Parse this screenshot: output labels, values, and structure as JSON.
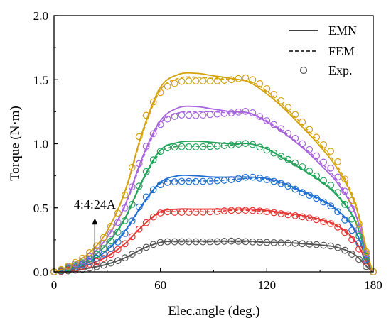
{
  "chart_data": {
    "type": "line",
    "title": "",
    "xlabel": "Elec.angle (deg.)",
    "ylabel": "Torque (N·m)",
    "xlim": [
      0,
      180
    ],
    "ylim": [
      0,
      2.0
    ],
    "xticks": [
      0,
      60,
      120,
      180
    ],
    "yticks": [
      0.0,
      0.5,
      1.0,
      1.5,
      2.0
    ],
    "xtick_labels": [
      "0",
      "60",
      "120",
      "180"
    ],
    "ytick_labels": [
      "0.0",
      "0.5",
      "1.0",
      "1.5",
      "2.0"
    ],
    "grid": false,
    "legend_position": "top-right",
    "legend": [
      {
        "label": "EMN",
        "style": "solid"
      },
      {
        "label": "FEM",
        "style": "dashed"
      },
      {
        "label": "Exp.",
        "style": "circle"
      }
    ],
    "annotation": {
      "text": "4:4:24A",
      "x": 23,
      "y_from": 0.0,
      "y_to": 0.42
    },
    "x": [
      0,
      10,
      20,
      30,
      40,
      50,
      60,
      70,
      80,
      90,
      100,
      110,
      120,
      130,
      140,
      150,
      160,
      170,
      180
    ],
    "series": [
      {
        "color": "#555555",
        "emn": [
          0,
          0.01,
          0.03,
          0.06,
          0.11,
          0.18,
          0.23,
          0.24,
          0.24,
          0.24,
          0.24,
          0.24,
          0.23,
          0.23,
          0.22,
          0.21,
          0.19,
          0.13,
          0
        ],
        "fem": [
          0,
          0.01,
          0.03,
          0.06,
          0.11,
          0.18,
          0.23,
          0.235,
          0.235,
          0.235,
          0.235,
          0.235,
          0.23,
          0.23,
          0.22,
          0.21,
          0.19,
          0.13,
          0
        ],
        "exp": [
          0,
          0.01,
          0.03,
          0.06,
          0.11,
          0.18,
          0.23,
          0.235,
          0.235,
          0.235,
          0.24,
          0.235,
          0.23,
          0.225,
          0.22,
          0.21,
          0.19,
          0.12,
          0
        ]
      },
      {
        "color": "#e83535",
        "emn": [
          0,
          0.02,
          0.06,
          0.12,
          0.22,
          0.36,
          0.47,
          0.49,
          0.49,
          0.49,
          0.49,
          0.49,
          0.48,
          0.46,
          0.44,
          0.41,
          0.36,
          0.24,
          0
        ],
        "fem": [
          0,
          0.02,
          0.06,
          0.12,
          0.22,
          0.36,
          0.46,
          0.47,
          0.47,
          0.47,
          0.48,
          0.48,
          0.47,
          0.45,
          0.43,
          0.4,
          0.35,
          0.23,
          0
        ],
        "exp": [
          0,
          0.02,
          0.06,
          0.12,
          0.22,
          0.36,
          0.46,
          0.465,
          0.465,
          0.47,
          0.48,
          0.48,
          0.47,
          0.45,
          0.43,
          0.4,
          0.35,
          0.22,
          0
        ]
      },
      {
        "color": "#1f6fd1",
        "emn": [
          0,
          0.03,
          0.08,
          0.17,
          0.32,
          0.53,
          0.7,
          0.75,
          0.75,
          0.74,
          0.74,
          0.74,
          0.73,
          0.69,
          0.63,
          0.57,
          0.48,
          0.32,
          0
        ],
        "fem": [
          0,
          0.03,
          0.08,
          0.17,
          0.31,
          0.52,
          0.69,
          0.71,
          0.71,
          0.71,
          0.72,
          0.73,
          0.72,
          0.68,
          0.62,
          0.56,
          0.47,
          0.31,
          0
        ],
        "exp": [
          0,
          0.03,
          0.08,
          0.16,
          0.3,
          0.55,
          0.68,
          0.705,
          0.705,
          0.71,
          0.72,
          0.74,
          0.72,
          0.68,
          0.62,
          0.56,
          0.47,
          0.28,
          0
        ]
      },
      {
        "color": "#22a35a",
        "emn": [
          0,
          0.04,
          0.1,
          0.22,
          0.42,
          0.72,
          0.95,
          1.01,
          1.02,
          1.01,
          1.0,
          1.0,
          0.96,
          0.88,
          0.8,
          0.71,
          0.59,
          0.39,
          0
        ],
        "fem": [
          0,
          0.04,
          0.1,
          0.22,
          0.41,
          0.71,
          0.93,
          0.98,
          0.98,
          0.98,
          0.99,
          1.0,
          0.96,
          0.89,
          0.81,
          0.72,
          0.6,
          0.4,
          0
        ],
        "exp": [
          0,
          0.04,
          0.1,
          0.21,
          0.4,
          0.73,
          0.94,
          0.975,
          0.975,
          0.98,
          0.99,
          1.0,
          0.95,
          0.89,
          0.82,
          0.73,
          0.62,
          0.35,
          0
        ]
      },
      {
        "color": "#a864dd",
        "emn": [
          0,
          0.05,
          0.12,
          0.27,
          0.52,
          0.9,
          1.18,
          1.28,
          1.29,
          1.27,
          1.25,
          1.24,
          1.17,
          1.08,
          0.97,
          0.84,
          0.69,
          0.45,
          0
        ],
        "fem": [
          0,
          0.05,
          0.12,
          0.27,
          0.51,
          0.88,
          1.16,
          1.24,
          1.25,
          1.25,
          1.24,
          1.24,
          1.18,
          1.09,
          0.98,
          0.86,
          0.71,
          0.46,
          0
        ],
        "exp": [
          0,
          0.05,
          0.12,
          0.26,
          0.5,
          0.92,
          1.15,
          1.22,
          1.22,
          1.23,
          1.24,
          1.25,
          1.18,
          1.1,
          1.0,
          0.88,
          0.74,
          0.42,
          0
        ]
      },
      {
        "color": "#d4a20b",
        "emn": [
          0,
          0.06,
          0.15,
          0.32,
          0.63,
          1.1,
          1.44,
          1.54,
          1.55,
          1.53,
          1.51,
          1.48,
          1.39,
          1.27,
          1.13,
          0.98,
          0.8,
          0.52,
          0
        ],
        "fem": [
          0,
          0.06,
          0.15,
          0.32,
          0.62,
          1.08,
          1.42,
          1.51,
          1.52,
          1.51,
          1.5,
          1.49,
          1.41,
          1.29,
          1.15,
          1.0,
          0.82,
          0.54,
          0
        ],
        "exp": [
          0,
          0.06,
          0.15,
          0.31,
          0.6,
          1.15,
          1.4,
          1.48,
          1.49,
          1.49,
          1.5,
          1.51,
          1.43,
          1.31,
          1.17,
          1.02,
          0.86,
          0.47,
          0
        ]
      }
    ]
  }
}
